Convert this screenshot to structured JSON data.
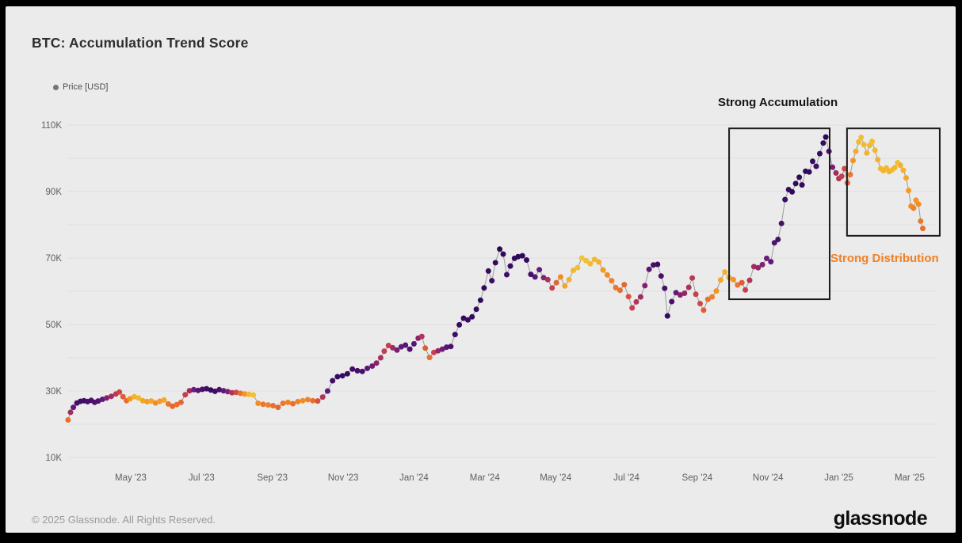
{
  "header": {
    "title": "BTC: Accumulation Trend Score"
  },
  "legend": {
    "label": "Price [USD]",
    "dot_color": "#757575"
  },
  "annotations": {
    "accumulation_label": "Strong Accumulation",
    "distribution_label": "Strong Distribution",
    "distribution_color": "#f28021",
    "box_stroke_color": "#1a1a1a"
  },
  "footer": {
    "copyright": "© 2025 Glassnode. All Rights Reserved.",
    "brand": "glassnode"
  },
  "chart_data": {
    "type": "scatter",
    "title": "BTC: Accumulation Trend Score",
    "series_label": "Price [USD]",
    "x_axis": {
      "tick_labels": [
        "May '23",
        "Jul '23",
        "Sep '23",
        "Nov '23",
        "Jan '24",
        "Mar '24",
        "May '24",
        "Jul '24",
        "Sep '24",
        "Nov '24",
        "Jan '25",
        "Mar '25"
      ],
      "tick_positions_months": [
        0,
        2,
        4,
        6,
        8,
        10,
        12,
        14,
        16,
        18,
        20,
        22
      ],
      "note": "x unit = months relative to the May '23 tick; data spans ~mid-Mar '23 to ~mid-Mar '25"
    },
    "y_axis": {
      "tick_labels": [
        "10K",
        "30K",
        "50K",
        "70K",
        "90K",
        "110K"
      ],
      "tick_values_k": [
        10,
        30,
        50,
        70,
        90,
        110
      ],
      "gridline_step_k": 10,
      "range_k": [
        10,
        110
      ],
      "unit": "USD"
    },
    "color_scale": {
      "meaning": "Accumulation Trend Score: 1 = strong accumulation (dark purple), 0 = strong distribution (yellow)",
      "stops": [
        [
          0.0,
          "#f2d54a"
        ],
        [
          0.1,
          "#f2b92f"
        ],
        [
          0.2,
          "#f39423"
        ],
        [
          0.3,
          "#e8702d"
        ],
        [
          0.4,
          "#d04a42"
        ],
        [
          0.45,
          "#c73e4c"
        ],
        [
          0.5,
          "#b13557"
        ],
        [
          0.6,
          "#8c2369"
        ],
        [
          0.7,
          "#641a80"
        ],
        [
          0.8,
          "#4b0f6b"
        ],
        [
          0.9,
          "#330a5f"
        ],
        [
          1.0,
          "#1a0b40"
        ]
      ]
    },
    "boxes": [
      {
        "label": "Strong Accumulation",
        "x0_months": 16.9,
        "x1_months": 19.74,
        "y0_k": 57.6,
        "y1_k": 109.0
      },
      {
        "label": "Strong Distribution",
        "x0_months": 20.23,
        "x1_months": 22.85,
        "y0_k": 76.7,
        "y1_k": 109.0
      }
    ],
    "points_format": [
      "x_months_after_May23_tick",
      "price_k_usd",
      "accumulation_score_0_to_1"
    ],
    "points": [
      [
        -1.77,
        21.3,
        0.3
      ],
      [
        -1.7,
        23.6,
        0.55
      ],
      [
        -1.62,
        25.1,
        0.72
      ],
      [
        -1.52,
        26.4,
        0.82
      ],
      [
        -1.42,
        26.9,
        0.85
      ],
      [
        -1.32,
        27.1,
        0.85
      ],
      [
        -1.22,
        26.8,
        0.82
      ],
      [
        -1.12,
        27.2,
        0.8
      ],
      [
        -1.02,
        26.6,
        0.78
      ],
      [
        -0.92,
        27.0,
        0.78
      ],
      [
        -0.8,
        27.5,
        0.72
      ],
      [
        -0.68,
        27.9,
        0.62
      ],
      [
        -0.55,
        28.4,
        0.55
      ],
      [
        -0.42,
        29.1,
        0.48
      ],
      [
        -0.32,
        29.7,
        0.42
      ],
      [
        -0.22,
        28.3,
        0.35
      ],
      [
        -0.12,
        27.1,
        0.3
      ],
      [
        -0.02,
        27.7,
        0.2
      ],
      [
        0.1,
        28.3,
        0.12
      ],
      [
        0.22,
        27.9,
        0.1
      ],
      [
        0.34,
        27.1,
        0.15
      ],
      [
        0.46,
        26.8,
        0.18
      ],
      [
        0.58,
        27.0,
        0.15
      ],
      [
        0.7,
        26.4,
        0.22
      ],
      [
        0.82,
        26.9,
        0.18
      ],
      [
        0.94,
        27.3,
        0.15
      ],
      [
        1.06,
        26.1,
        0.28
      ],
      [
        1.18,
        25.4,
        0.32
      ],
      [
        1.3,
        25.9,
        0.3
      ],
      [
        1.42,
        26.6,
        0.32
      ],
      [
        1.54,
        28.9,
        0.45
      ],
      [
        1.66,
        30.1,
        0.55
      ],
      [
        1.78,
        30.4,
        0.68
      ],
      [
        1.9,
        30.2,
        0.75
      ],
      [
        2.02,
        30.5,
        0.8
      ],
      [
        2.14,
        30.7,
        0.85
      ],
      [
        2.26,
        30.3,
        0.88
      ],
      [
        2.38,
        29.9,
        0.85
      ],
      [
        2.5,
        30.4,
        0.8
      ],
      [
        2.62,
        30.1,
        0.72
      ],
      [
        2.74,
        29.8,
        0.62
      ],
      [
        2.86,
        29.5,
        0.5
      ],
      [
        2.98,
        29.6,
        0.4
      ],
      [
        3.1,
        29.3,
        0.3
      ],
      [
        3.22,
        29.1,
        0.2
      ],
      [
        3.34,
        29.0,
        0.1
      ],
      [
        3.46,
        28.8,
        0.08
      ],
      [
        3.6,
        26.3,
        0.22
      ],
      [
        3.74,
        26.0,
        0.28
      ],
      [
        3.88,
        25.8,
        0.25
      ],
      [
        4.02,
        25.6,
        0.3
      ],
      [
        4.16,
        25.1,
        0.32
      ],
      [
        4.3,
        26.3,
        0.28
      ],
      [
        4.44,
        26.6,
        0.25
      ],
      [
        4.58,
        26.2,
        0.3
      ],
      [
        4.72,
        26.8,
        0.25
      ],
      [
        4.86,
        27.1,
        0.22
      ],
      [
        5.0,
        27.4,
        0.25
      ],
      [
        5.14,
        27.1,
        0.3
      ],
      [
        5.28,
        27.0,
        0.38
      ],
      [
        5.42,
        28.2,
        0.5
      ],
      [
        5.56,
        30.0,
        0.72
      ],
      [
        5.7,
        33.1,
        0.85
      ],
      [
        5.84,
        34.3,
        0.9
      ],
      [
        5.98,
        34.6,
        0.9
      ],
      [
        6.12,
        35.2,
        0.88
      ],
      [
        6.26,
        36.6,
        0.85
      ],
      [
        6.4,
        36.1,
        0.82
      ],
      [
        6.54,
        35.9,
        0.8
      ],
      [
        6.68,
        36.8,
        0.75
      ],
      [
        6.82,
        37.5,
        0.68
      ],
      [
        6.94,
        38.4,
        0.6
      ],
      [
        7.06,
        40.0,
        0.52
      ],
      [
        7.16,
        42.0,
        0.45
      ],
      [
        7.28,
        43.7,
        0.45
      ],
      [
        7.4,
        43.0,
        0.55
      ],
      [
        7.52,
        42.3,
        0.65
      ],
      [
        7.64,
        43.3,
        0.72
      ],
      [
        7.76,
        43.8,
        0.75
      ],
      [
        7.88,
        42.6,
        0.78
      ],
      [
        8.0,
        44.2,
        0.75
      ],
      [
        8.12,
        45.9,
        0.6
      ],
      [
        8.22,
        46.4,
        0.5
      ],
      [
        8.32,
        42.9,
        0.35
      ],
      [
        8.44,
        40.1,
        0.3
      ],
      [
        8.56,
        41.6,
        0.45
      ],
      [
        8.68,
        42.1,
        0.58
      ],
      [
        8.8,
        42.6,
        0.68
      ],
      [
        8.92,
        43.2,
        0.75
      ],
      [
        9.04,
        43.4,
        0.8
      ],
      [
        9.16,
        47.0,
        0.85
      ],
      [
        9.28,
        49.9,
        0.88
      ],
      [
        9.4,
        51.9,
        0.9
      ],
      [
        9.52,
        51.4,
        0.88
      ],
      [
        9.64,
        52.3,
        0.9
      ],
      [
        9.76,
        54.6,
        0.9
      ],
      [
        9.88,
        57.3,
        0.92
      ],
      [
        9.98,
        61.0,
        0.92
      ],
      [
        10.1,
        66.1,
        0.9
      ],
      [
        10.2,
        63.2,
        0.85
      ],
      [
        10.3,
        68.6,
        0.9
      ],
      [
        10.42,
        72.7,
        0.95
      ],
      [
        10.52,
        71.2,
        0.92
      ],
      [
        10.62,
        65.0,
        0.85
      ],
      [
        10.72,
        67.6,
        0.88
      ],
      [
        10.84,
        69.9,
        0.9
      ],
      [
        10.94,
        70.4,
        0.92
      ],
      [
        11.06,
        70.7,
        0.92
      ],
      [
        11.18,
        69.4,
        0.9
      ],
      [
        11.3,
        65.1,
        0.82
      ],
      [
        11.42,
        64.3,
        0.75
      ],
      [
        11.54,
        66.5,
        0.7
      ],
      [
        11.66,
        64.1,
        0.62
      ],
      [
        11.78,
        63.5,
        0.52
      ],
      [
        11.9,
        61.0,
        0.45
      ],
      [
        12.02,
        62.6,
        0.32
      ],
      [
        12.14,
        64.3,
        0.22
      ],
      [
        12.26,
        61.6,
        0.15
      ],
      [
        12.38,
        63.5,
        0.12
      ],
      [
        12.5,
        66.3,
        0.1
      ],
      [
        12.62,
        67.1,
        0.08
      ],
      [
        12.74,
        70.0,
        0.06
      ],
      [
        12.86,
        69.2,
        0.08
      ],
      [
        12.98,
        68.3,
        0.1
      ],
      [
        13.1,
        69.6,
        0.1
      ],
      [
        13.22,
        68.8,
        0.12
      ],
      [
        13.34,
        66.4,
        0.18
      ],
      [
        13.46,
        64.9,
        0.22
      ],
      [
        13.58,
        63.2,
        0.25
      ],
      [
        13.7,
        61.1,
        0.28
      ],
      [
        13.82,
        60.3,
        0.3
      ],
      [
        13.94,
        62.0,
        0.32
      ],
      [
        14.06,
        58.4,
        0.38
      ],
      [
        14.16,
        55.0,
        0.45
      ],
      [
        14.28,
        56.8,
        0.5
      ],
      [
        14.4,
        58.3,
        0.55
      ],
      [
        14.52,
        61.7,
        0.62
      ],
      [
        14.64,
        66.6,
        0.75
      ],
      [
        14.76,
        67.9,
        0.82
      ],
      [
        14.88,
        68.1,
        0.85
      ],
      [
        14.98,
        64.6,
        0.8
      ],
      [
        15.08,
        60.9,
        0.82
      ],
      [
        15.16,
        52.6,
        0.9
      ],
      [
        15.28,
        56.9,
        0.8
      ],
      [
        15.4,
        59.6,
        0.72
      ],
      [
        15.52,
        58.9,
        0.62
      ],
      [
        15.64,
        59.4,
        0.58
      ],
      [
        15.76,
        61.2,
        0.52
      ],
      [
        15.86,
        64.0,
        0.48
      ],
      [
        15.96,
        59.1,
        0.45
      ],
      [
        16.08,
        56.3,
        0.4
      ],
      [
        16.18,
        54.3,
        0.35
      ],
      [
        16.3,
        57.6,
        0.3
      ],
      [
        16.42,
        58.3,
        0.25
      ],
      [
        16.54,
        60.1,
        0.2
      ],
      [
        16.66,
        63.4,
        0.15
      ],
      [
        16.78,
        65.8,
        0.12
      ],
      [
        16.9,
        64.1,
        0.15
      ],
      [
        17.02,
        63.5,
        0.2
      ],
      [
        17.14,
        61.9,
        0.28
      ],
      [
        17.26,
        62.6,
        0.35
      ],
      [
        17.36,
        60.4,
        0.45
      ],
      [
        17.48,
        63.3,
        0.5
      ],
      [
        17.6,
        67.4,
        0.55
      ],
      [
        17.72,
        67.1,
        0.58
      ],
      [
        17.84,
        68.0,
        0.62
      ],
      [
        17.96,
        69.9,
        0.68
      ],
      [
        18.08,
        68.9,
        0.72
      ],
      [
        18.18,
        74.6,
        0.78
      ],
      [
        18.28,
        75.6,
        0.8
      ],
      [
        18.38,
        80.4,
        0.82
      ],
      [
        18.48,
        87.6,
        0.86
      ],
      [
        18.58,
        90.6,
        0.88
      ],
      [
        18.68,
        89.9,
        0.9
      ],
      [
        18.78,
        92.4,
        0.92
      ],
      [
        18.88,
        94.3,
        0.92
      ],
      [
        18.96,
        92.0,
        0.9
      ],
      [
        19.06,
        96.1,
        0.92
      ],
      [
        19.16,
        95.9,
        0.9
      ],
      [
        19.26,
        99.1,
        0.9
      ],
      [
        19.36,
        97.6,
        0.86
      ],
      [
        19.46,
        101.4,
        0.88
      ],
      [
        19.56,
        104.6,
        0.9
      ],
      [
        19.63,
        106.4,
        0.92
      ],
      [
        19.72,
        102.1,
        0.8
      ],
      [
        19.82,
        97.3,
        0.65
      ],
      [
        19.92,
        95.6,
        0.55
      ],
      [
        20.0,
        93.9,
        0.5
      ],
      [
        20.08,
        94.6,
        0.45
      ],
      [
        20.16,
        96.9,
        0.4
      ],
      [
        20.24,
        92.6,
        0.35
      ],
      [
        20.32,
        95.1,
        0.28
      ],
      [
        20.4,
        99.3,
        0.2
      ],
      [
        20.48,
        102.1,
        0.14
      ],
      [
        20.56,
        104.9,
        0.1
      ],
      [
        20.63,
        106.3,
        0.08
      ],
      [
        20.71,
        104.1,
        0.1
      ],
      [
        20.79,
        101.6,
        0.12
      ],
      [
        20.87,
        103.9,
        0.1
      ],
      [
        20.94,
        105.1,
        0.08
      ],
      [
        21.02,
        102.4,
        0.1
      ],
      [
        21.1,
        99.6,
        0.12
      ],
      [
        21.18,
        96.9,
        0.1
      ],
      [
        21.26,
        96.3,
        0.12
      ],
      [
        21.34,
        97.1,
        0.1
      ],
      [
        21.42,
        96.0,
        0.12
      ],
      [
        21.5,
        96.5,
        0.1
      ],
      [
        21.58,
        97.2,
        0.1
      ],
      [
        21.66,
        98.7,
        0.08
      ],
      [
        21.74,
        97.9,
        0.12
      ],
      [
        21.82,
        96.4,
        0.12
      ],
      [
        21.9,
        94.1,
        0.15
      ],
      [
        21.97,
        90.3,
        0.18
      ],
      [
        22.04,
        85.6,
        0.22
      ],
      [
        22.11,
        85.0,
        0.25
      ],
      [
        22.18,
        87.4,
        0.2
      ],
      [
        22.25,
        86.2,
        0.22
      ],
      [
        22.31,
        81.1,
        0.28
      ],
      [
        22.37,
        78.9,
        0.3
      ]
    ],
    "layout": {
      "grid": true,
      "legend_position": "top-left",
      "background": "#ebebeb"
    }
  }
}
